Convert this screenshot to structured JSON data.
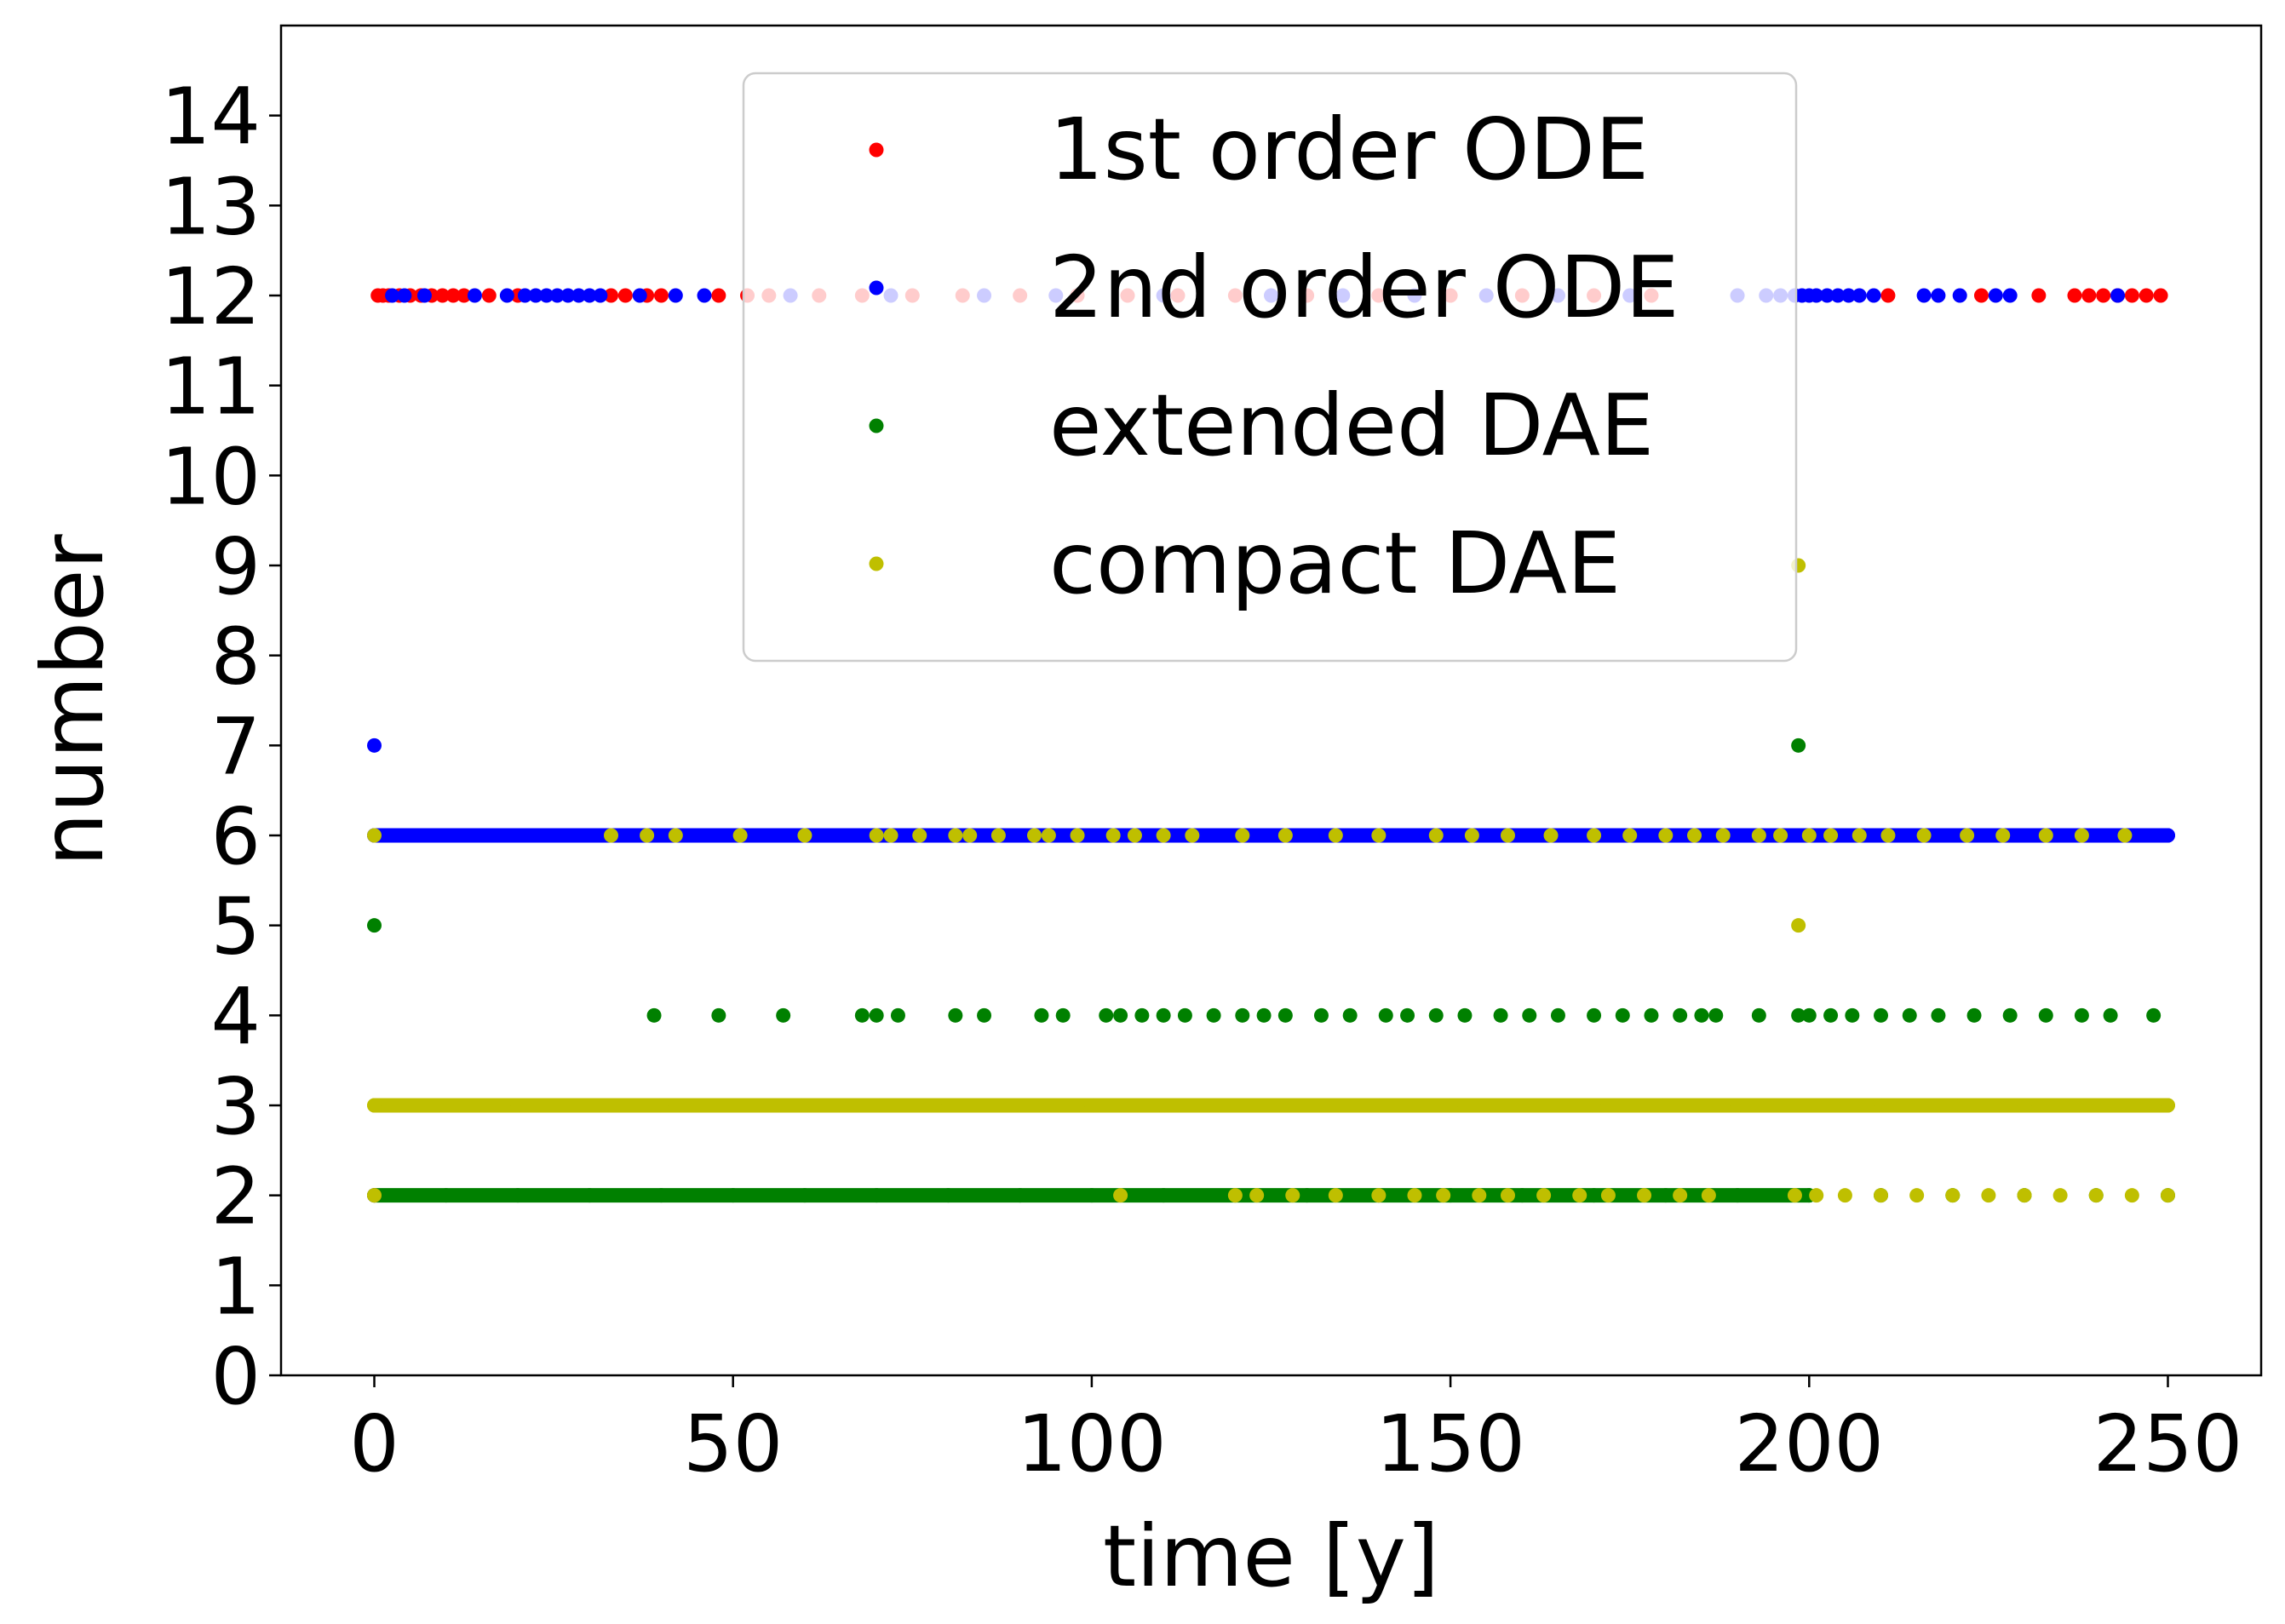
{
  "chart_data": {
    "type": "scatter",
    "title": "",
    "xlabel": "time [y]",
    "ylabel": "number",
    "xlim": [
      -13,
      263
    ],
    "ylim": [
      0,
      15
    ],
    "xticks": [
      "0",
      "50",
      "100",
      "150",
      "200",
      "250"
    ],
    "yticks": [
      "0",
      "1",
      "2",
      "3",
      "4",
      "5",
      "6",
      "7",
      "8",
      "9",
      "10",
      "11",
      "12",
      "13",
      "14"
    ],
    "grid": false,
    "legend_position": "upper center",
    "series": [
      {
        "name": "1st order ODE",
        "color": "#ff0000",
        "points": [
          [
            0.5,
            12
          ],
          [
            1.2,
            12
          ],
          [
            2.0,
            12
          ],
          [
            3.5,
            12
          ],
          [
            5.0,
            12
          ],
          [
            6.5,
            12
          ],
          [
            8.0,
            12
          ],
          [
            9.5,
            12
          ],
          [
            11.0,
            12
          ],
          [
            12.5,
            12
          ],
          [
            16.0,
            12
          ],
          [
            20.0,
            12
          ],
          [
            33.0,
            12
          ],
          [
            35.0,
            12
          ],
          [
            38.0,
            12
          ],
          [
            40.0,
            12
          ],
          [
            48.0,
            12
          ],
          [
            52.0,
            12
          ],
          [
            55.0,
            12
          ],
          [
            62.0,
            12
          ],
          [
            68.0,
            12
          ],
          [
            75.0,
            12
          ],
          [
            82.0,
            12
          ],
          [
            90.0,
            12
          ],
          [
            98.0,
            12
          ],
          [
            105.0,
            12
          ],
          [
            112.0,
            12
          ],
          [
            120.0,
            12
          ],
          [
            130.0,
            12
          ],
          [
            140.0,
            12
          ],
          [
            150.0,
            12
          ],
          [
            160.0,
            12
          ],
          [
            170.0,
            12
          ],
          [
            178.0,
            12
          ],
          [
            211.0,
            12
          ],
          [
            224.0,
            12
          ],
          [
            232.0,
            12
          ],
          [
            237.0,
            12
          ],
          [
            239.0,
            12
          ],
          [
            241.0,
            12
          ],
          [
            243.0,
            12
          ],
          [
            245.0,
            12
          ],
          [
            247.0,
            12
          ],
          [
            249.0,
            12
          ],
          [
            0.0,
            2
          ]
        ]
      },
      {
        "name": "2nd order ODE",
        "color": "#0000ff",
        "points": [
          [
            0.0,
            7
          ],
          [
            0.0,
            6
          ],
          [
            6.0,
            6
          ],
          [
            12.0,
            6
          ],
          [
            18.0,
            6
          ],
          [
            24.0,
            6
          ],
          [
            30.0,
            6
          ],
          [
            36.0,
            6
          ],
          [
            42.0,
            6
          ],
          [
            48.0,
            6
          ],
          [
            54.0,
            6
          ],
          [
            60.0,
            6
          ],
          [
            66.0,
            6
          ],
          [
            72.0,
            6
          ],
          [
            78.0,
            6
          ],
          [
            84.0,
            6
          ],
          [
            90.0,
            6
          ],
          [
            96.0,
            6
          ],
          [
            102.0,
            6
          ],
          [
            108.0,
            6
          ],
          [
            114.0,
            6
          ],
          [
            120.0,
            6
          ],
          [
            126.0,
            6
          ],
          [
            132.0,
            6
          ],
          [
            138.0,
            6
          ],
          [
            144.0,
            6
          ],
          [
            150.0,
            6
          ],
          [
            156.0,
            6
          ],
          [
            162.0,
            6
          ],
          [
            168.0,
            6
          ],
          [
            174.0,
            6
          ],
          [
            180.0,
            6
          ],
          [
            186.0,
            6
          ],
          [
            192.0,
            6
          ],
          [
            198.0,
            6
          ],
          [
            204.0,
            6
          ],
          [
            210.0,
            6
          ],
          [
            216.0,
            6
          ],
          [
            222.0,
            6
          ],
          [
            228.0,
            6
          ],
          [
            234.0,
            6
          ],
          [
            240.0,
            6
          ],
          [
            246.0,
            6
          ],
          [
            250.0,
            6
          ],
          [
            2.5,
            12
          ],
          [
            4.2,
            12
          ],
          [
            7.0,
            12
          ],
          [
            14.0,
            12
          ],
          [
            18.5,
            12
          ],
          [
            21.0,
            12
          ],
          [
            22.5,
            12
          ],
          [
            24.0,
            12
          ],
          [
            25.5,
            12
          ],
          [
            27.0,
            12
          ],
          [
            28.5,
            12
          ],
          [
            30.0,
            12
          ],
          [
            31.5,
            12
          ],
          [
            37.0,
            12
          ],
          [
            42.0,
            12
          ],
          [
            46.0,
            12
          ],
          [
            58.0,
            12
          ],
          [
            72.0,
            12
          ],
          [
            85.0,
            12
          ],
          [
            95.0,
            12
          ],
          [
            110.0,
            12
          ],
          [
            125.0,
            12
          ],
          [
            135.0,
            12
          ],
          [
            145.0,
            12
          ],
          [
            155.0,
            12
          ],
          [
            165.0,
            12
          ],
          [
            175.0,
            12
          ],
          [
            190.0,
            12
          ],
          [
            194.0,
            12
          ],
          [
            196.0,
            12
          ],
          [
            198.0,
            12
          ],
          [
            199.0,
            12
          ],
          [
            200.0,
            12
          ],
          [
            201.0,
            12
          ],
          [
            202.5,
            12
          ],
          [
            204.0,
            12
          ],
          [
            205.5,
            12
          ],
          [
            207.0,
            12
          ],
          [
            209.0,
            12
          ],
          [
            216.0,
            12
          ],
          [
            218.0,
            12
          ],
          [
            221.0,
            12
          ],
          [
            226.0,
            12
          ],
          [
            228.0,
            12
          ],
          [
            243.0,
            12
          ]
        ]
      },
      {
        "name": "extended DAE",
        "color": "#008000",
        "points": [
          [
            0.0,
            5
          ],
          [
            198.5,
            7
          ],
          [
            39.0,
            4
          ],
          [
            48.0,
            4
          ],
          [
            57.0,
            4
          ],
          [
            68.0,
            4
          ],
          [
            70.0,
            4
          ],
          [
            73.0,
            4
          ],
          [
            81.0,
            4
          ],
          [
            85.0,
            4
          ],
          [
            93.0,
            4
          ],
          [
            96.0,
            4
          ],
          [
            102.0,
            4
          ],
          [
            104.0,
            4
          ],
          [
            107.0,
            4
          ],
          [
            110.0,
            4
          ],
          [
            113.0,
            4
          ],
          [
            117.0,
            4
          ],
          [
            121.0,
            4
          ],
          [
            124.0,
            4
          ],
          [
            127.0,
            4
          ],
          [
            132.0,
            4
          ],
          [
            136.0,
            4
          ],
          [
            141.0,
            4
          ],
          [
            144.0,
            4
          ],
          [
            148.0,
            4
          ],
          [
            152.0,
            4
          ],
          [
            157.0,
            4
          ],
          [
            161.0,
            4
          ],
          [
            165.0,
            4
          ],
          [
            170.0,
            4
          ],
          [
            174.0,
            4
          ],
          [
            178.0,
            4
          ],
          [
            182.0,
            4
          ],
          [
            185.0,
            4
          ],
          [
            187.0,
            4
          ],
          [
            193.0,
            4
          ],
          [
            198.5,
            4
          ],
          [
            200.0,
            4
          ],
          [
            203.0,
            4
          ],
          [
            206.0,
            4
          ],
          [
            210.0,
            4
          ],
          [
            214.0,
            4
          ],
          [
            218.0,
            4
          ],
          [
            223.0,
            4
          ],
          [
            228.0,
            4
          ],
          [
            233.0,
            4
          ],
          [
            238.0,
            4
          ],
          [
            242.0,
            4
          ],
          [
            248.0,
            4
          ],
          [
            0.0,
            2
          ],
          [
            10.0,
            2
          ],
          [
            20.0,
            2
          ],
          [
            30.0,
            2
          ],
          [
            40.0,
            2
          ],
          [
            50.0,
            2
          ],
          [
            60.0,
            2
          ],
          [
            70.0,
            2
          ],
          [
            80.0,
            2
          ],
          [
            90.0,
            2
          ],
          [
            100.0,
            2
          ],
          [
            110.0,
            2
          ],
          [
            120.0,
            2
          ],
          [
            130.0,
            2
          ],
          [
            140.0,
            2
          ],
          [
            150.0,
            2
          ],
          [
            160.0,
            2
          ],
          [
            170.0,
            2
          ],
          [
            180.0,
            2
          ],
          [
            190.0,
            2
          ],
          [
            200.0,
            2
          ],
          [
            210.0,
            2
          ],
          [
            220.0,
            2
          ],
          [
            230.0,
            2
          ],
          [
            240.0,
            2
          ],
          [
            250.0,
            2
          ]
        ]
      },
      {
        "name": "compact DAE",
        "color": "#bfbf00",
        "points": [
          [
            0.0,
            6
          ],
          [
            198.5,
            9
          ],
          [
            198.5,
            5
          ],
          [
            33.0,
            6
          ],
          [
            38.0,
            6
          ],
          [
            42.0,
            6
          ],
          [
            51.0,
            6
          ],
          [
            60.0,
            6
          ],
          [
            70.0,
            6
          ],
          [
            72.0,
            6
          ],
          [
            76.0,
            6
          ],
          [
            81.0,
            6
          ],
          [
            83.0,
            6
          ],
          [
            87.0,
            6
          ],
          [
            92.0,
            6
          ],
          [
            94.0,
            6
          ],
          [
            98.0,
            6
          ],
          [
            103.0,
            6
          ],
          [
            106.0,
            6
          ],
          [
            110.0,
            6
          ],
          [
            114.0,
            6
          ],
          [
            121.0,
            6
          ],
          [
            127.0,
            6
          ],
          [
            134.0,
            6
          ],
          [
            140.0,
            6
          ],
          [
            148.0,
            6
          ],
          [
            153.0,
            6
          ],
          [
            158.0,
            6
          ],
          [
            164.0,
            6
          ],
          [
            170.0,
            6
          ],
          [
            175.0,
            6
          ],
          [
            180.0,
            6
          ],
          [
            184.0,
            6
          ],
          [
            188.0,
            6
          ],
          [
            193.0,
            6
          ],
          [
            196.0,
            6
          ],
          [
            200.0,
            6
          ],
          [
            203.0,
            6
          ],
          [
            207.0,
            6
          ],
          [
            211.0,
            6
          ],
          [
            216.0,
            6
          ],
          [
            222.0,
            6
          ],
          [
            227.0,
            6
          ],
          [
            233.0,
            6
          ],
          [
            238.0,
            6
          ],
          [
            244.0,
            6
          ],
          [
            0.0,
            3
          ],
          [
            10.0,
            3
          ],
          [
            20.0,
            3
          ],
          [
            30.0,
            3
          ],
          [
            40.0,
            3
          ],
          [
            50.0,
            3
          ],
          [
            60.0,
            3
          ],
          [
            70.0,
            3
          ],
          [
            80.0,
            3
          ],
          [
            90.0,
            3
          ],
          [
            100.0,
            3
          ],
          [
            110.0,
            3
          ],
          [
            120.0,
            3
          ],
          [
            130.0,
            3
          ],
          [
            140.0,
            3
          ],
          [
            150.0,
            3
          ],
          [
            160.0,
            3
          ],
          [
            170.0,
            3
          ],
          [
            180.0,
            3
          ],
          [
            190.0,
            3
          ],
          [
            200.0,
            3
          ],
          [
            210.0,
            3
          ],
          [
            220.0,
            3
          ],
          [
            230.0,
            3
          ],
          [
            240.0,
            3
          ],
          [
            250.0,
            3
          ],
          [
            0.0,
            2
          ],
          [
            104.0,
            2
          ],
          [
            120.0,
            2
          ],
          [
            123.0,
            2
          ],
          [
            128.0,
            2
          ],
          [
            134.0,
            2
          ],
          [
            140.0,
            2
          ],
          [
            145.0,
            2
          ],
          [
            149.0,
            2
          ],
          [
            154.0,
            2
          ],
          [
            158.0,
            2
          ],
          [
            163.0,
            2
          ],
          [
            168.0,
            2
          ],
          [
            172.0,
            2
          ],
          [
            177.0,
            2
          ],
          [
            182.0,
            2
          ],
          [
            186.0,
            2
          ],
          [
            198.0,
            2
          ],
          [
            201.0,
            2
          ],
          [
            205.0,
            2
          ],
          [
            210.0,
            2
          ],
          [
            215.0,
            2
          ],
          [
            220.0,
            2
          ],
          [
            225.0,
            2
          ],
          [
            230.0,
            2
          ],
          [
            235.0,
            2
          ],
          [
            240.0,
            2
          ],
          [
            245.0,
            2
          ],
          [
            250.0,
            2
          ]
        ]
      }
    ]
  }
}
